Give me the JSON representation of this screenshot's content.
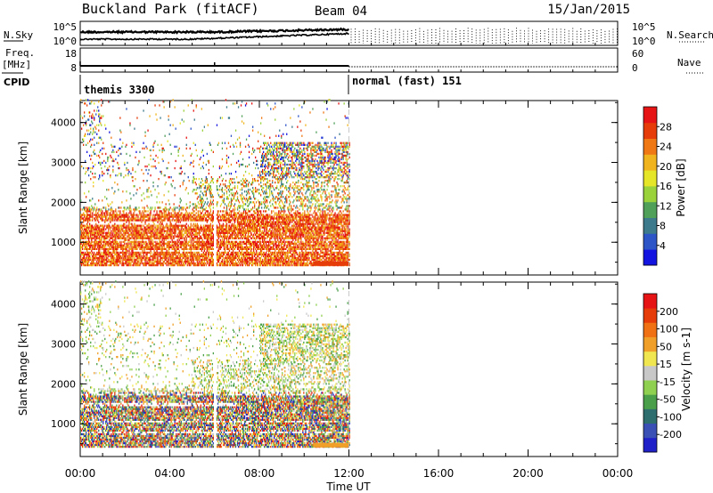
{
  "header": {
    "station": "Buckland Park (fitACF)",
    "beam": "Beam 04",
    "date": "15/Jan/2015"
  },
  "top_panels": {
    "nsky_label": "N.Sky",
    "nsky_ticks": [
      "10^5",
      "10^0"
    ],
    "nsearch_label": "N.Search",
    "freq_label_line1": "Freq.",
    "freq_label_line2": "[MHz]",
    "freq_ticks": [
      "18",
      "8"
    ],
    "nave_label": "Nave",
    "nave_ticks": [
      "60",
      "0"
    ],
    "cpid_label": "CPID",
    "cpid_modes": [
      "themis 3300",
      "normal (fast) 151"
    ]
  },
  "colors": {
    "power_scale": [
      "#1414e0",
      "#2d55c8",
      "#3c7a8c",
      "#50a05a",
      "#9ad23c",
      "#e6e628",
      "#f0b41e",
      "#f07814",
      "#e63c0a",
      "#e61414"
    ],
    "velocity_scale": [
      "#2020c8",
      "#3a50b4",
      "#2e6e6e",
      "#4aa04a",
      "#90d050",
      "#c8c8c8",
      "#f0e650",
      "#f0a028",
      "#f07014",
      "#e63c0a",
      "#e61414"
    ],
    "dot": "#000000"
  },
  "chart_data": [
    {
      "type": "heatmap",
      "parameter": "Power",
      "ylabel": "Slant Range [km]",
      "xlabel": "Time UT",
      "x_ticks": [
        "00:00",
        "04:00",
        "08:00",
        "12:00",
        "16:00",
        "20:00",
        "00:00"
      ],
      "x_range_hours": [
        0,
        24
      ],
      "y_ticks": [
        1000,
        2000,
        3000,
        4000
      ],
      "y_range_km": [
        180,
        4550
      ],
      "colorbar_label": "Power [dB]",
      "colorbar_ticks": [
        "4",
        "8",
        "12",
        "16",
        "20",
        "24",
        "28"
      ],
      "colorbar_range": [
        0,
        32
      ],
      "data_extent_hours": [
        0,
        12
      ],
      "gap_hour": 6
    },
    {
      "type": "heatmap",
      "parameter": "Velocity",
      "ylabel": "Slant Range [km]",
      "xlabel": "Time UT",
      "x_ticks": [
        "00:00",
        "04:00",
        "08:00",
        "12:00",
        "16:00",
        "20:00",
        "00:00"
      ],
      "x_range_hours": [
        0,
        24
      ],
      "y_ticks": [
        1000,
        2000,
        3000,
        4000
      ],
      "y_range_km": [
        180,
        4550
      ],
      "colorbar_label": "Velocity [m s-1]",
      "colorbar_ticks": [
        "-200",
        "-100",
        "-50",
        "-15",
        "15",
        "50",
        "100",
        "200"
      ],
      "data_extent_hours": [
        0,
        12
      ],
      "gap_hour": 6
    }
  ]
}
